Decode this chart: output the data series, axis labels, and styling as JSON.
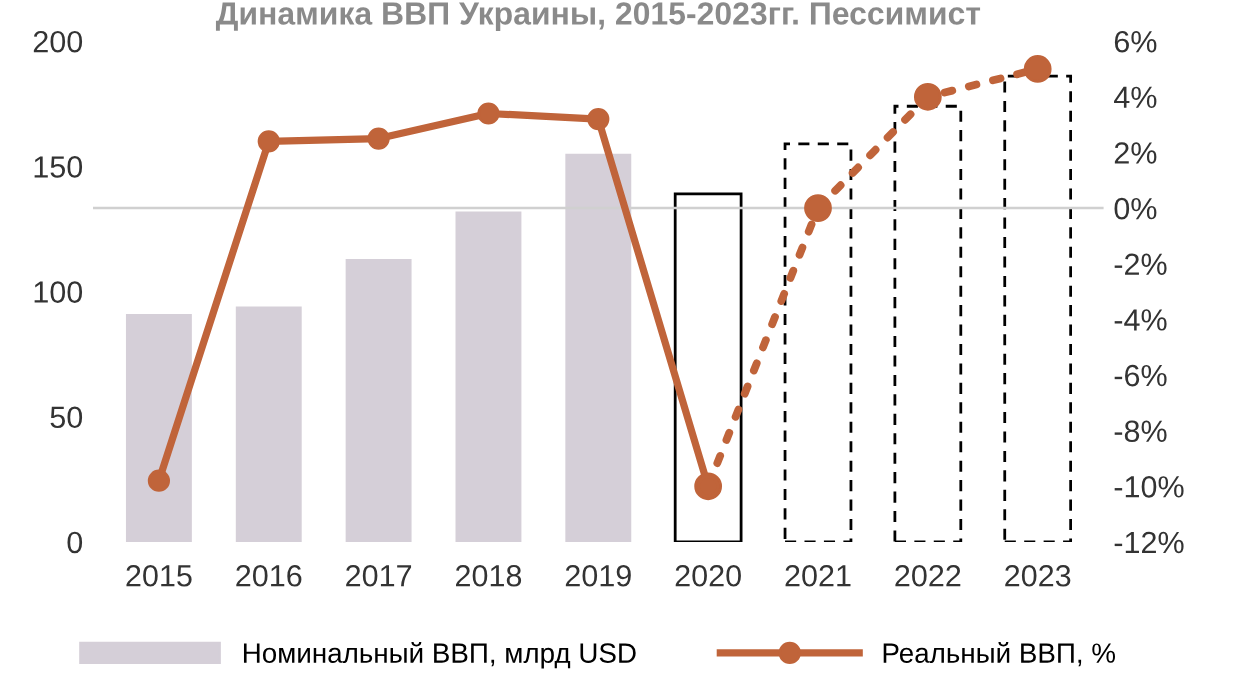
{
  "chart_data": {
    "type": "bar",
    "title": "Динамика ВВП Украины, 2015-2023гг. Пессимист",
    "categories": [
      "2015",
      "2016",
      "2017",
      "2018",
      "2019",
      "2020",
      "2021",
      "2022",
      "2023"
    ],
    "series": [
      {
        "name": "Номинальный ВВП, млрд USD",
        "color": "#d5cfd8",
        "values": [
          91,
          94,
          113,
          132,
          155,
          null,
          null,
          null,
          null
        ]
      },
      {
        "color": "#000000",
        "line_style": "solid",
        "values": [
          null,
          null,
          null,
          null,
          null,
          139,
          null,
          null,
          null
        ]
      },
      {
        "color": "#000000",
        "line_style": "dashed",
        "values": [
          null,
          null,
          null,
          null,
          null,
          null,
          159,
          174,
          186
        ]
      },
      {
        "name": "Реальный ВВП, %",
        "type": "line",
        "axis": "y2",
        "color": "#c0643a",
        "line_style": "solid",
        "marker": "circle",
        "values": [
          -9.8,
          2.4,
          2.5,
          3.4,
          3.2,
          -10,
          null,
          null,
          null
        ]
      },
      {
        "type": "line",
        "axis": "y2",
        "color": "#c0643a",
        "line_style": "dotted",
        "marker": "circle",
        "values": [
          null,
          null,
          null,
          null,
          null,
          -10,
          0,
          4,
          5
        ]
      }
    ],
    "ylim": [
      0,
      200
    ],
    "yticks": [
      0,
      50,
      100,
      150,
      200
    ],
    "y2lim": [
      -12,
      6
    ],
    "y2ticks": [
      {
        "value": -12,
        "label": "-12%"
      },
      {
        "value": -10,
        "label": "-10%"
      },
      {
        "value": -8,
        "label": "-8%"
      },
      {
        "value": -6,
        "label": "-6%"
      },
      {
        "value": -4,
        "label": "-4%"
      },
      {
        "value": -2,
        "label": "-2%"
      },
      {
        "value": 0,
        "label": "0%"
      },
      {
        "value": 2,
        "label": "2%"
      },
      {
        "value": 4,
        "label": "4%"
      },
      {
        "value": 6,
        "label": "6%"
      }
    ],
    "ref_lines": [
      {
        "axis": "y2",
        "value": 0,
        "color": "#d0d0d0"
      }
    ],
    "grid": false,
    "legend": "bottom"
  }
}
